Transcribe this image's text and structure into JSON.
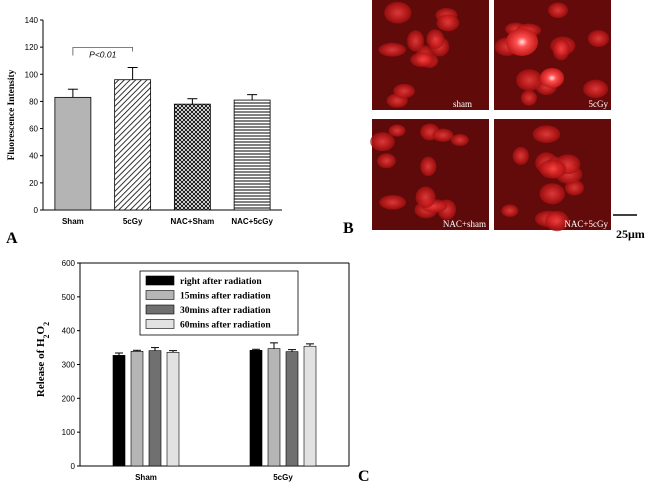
{
  "panels": {
    "a": "A",
    "b": "B",
    "c": "C"
  },
  "micrographs": {
    "labels": [
      "sham",
      "5cGy",
      "NAC+sham",
      "NAC+5cGy"
    ],
    "scale_bar": "25μm",
    "color": "#c0161a"
  },
  "chart_data": [
    {
      "id": "A",
      "type": "bar",
      "ylabel": "Fluorescence Intensity",
      "xlabel": "",
      "ylim": [
        0,
        140
      ],
      "yticks": [
        0,
        20,
        40,
        60,
        80,
        100,
        120,
        140
      ],
      "categories": [
        "Sham",
        "5cGy",
        "NAC+Sham",
        "NAC+5cGy"
      ],
      "values": [
        83,
        96,
        78,
        81
      ],
      "errors": [
        6,
        9,
        4,
        4
      ],
      "patterns": [
        "solid-gray",
        "diagonal-hatch",
        "crosshatch",
        "horizontal-lines"
      ],
      "annotation": {
        "text": "P<0.01",
        "between": [
          "Sham",
          "5cGy"
        ]
      },
      "grid": false
    },
    {
      "id": "C",
      "type": "bar",
      "ylabel": "Release of H2O2",
      "xlabel": "",
      "ylim": [
        0,
        600
      ],
      "yticks": [
        0,
        100,
        200,
        300,
        400,
        500,
        600
      ],
      "categories": [
        "Sham",
        "5cGy"
      ],
      "series": [
        {
          "name": "right after radiation",
          "values": [
            327,
            342
          ],
          "errors": [
            7,
            3
          ],
          "color": "#000000"
        },
        {
          "name": "15mins after radiation",
          "values": [
            339,
            347
          ],
          "errors": [
            3,
            17
          ],
          "color": "#b5b5b5"
        },
        {
          "name": "30mins after radiation",
          "values": [
            341,
            338
          ],
          "errors": [
            9,
            6
          ],
          "color": "#707070"
        },
        {
          "name": "60mins after radiation",
          "values": [
            336,
            354
          ],
          "errors": [
            5,
            7
          ],
          "color": "#e2e2e2"
        }
      ],
      "legend_position": "top-left",
      "grid": false
    }
  ]
}
